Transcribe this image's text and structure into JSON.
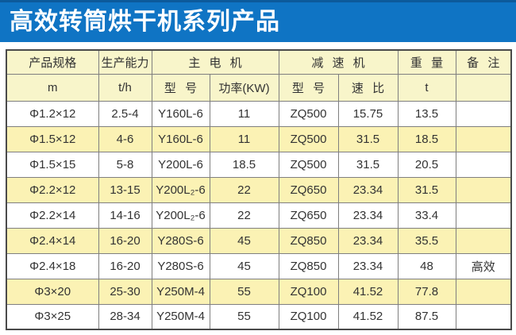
{
  "title": "高效转筒烘干机系列产品",
  "colors": {
    "title_bar": "#0F74C4",
    "title_bar_top_edge": "#0C5A9B",
    "header_bg": "#F8F5CA",
    "row_alt_bg": "#FBF2B4",
    "grid_line": "#7F7F7F",
    "outer_border": "#4A4A4A",
    "title_text": "#FFFFFF",
    "body_text": "#333333"
  },
  "table": {
    "header_row1": [
      "产品规格",
      "生产能力",
      "主 电 机",
      "减 速 机",
      "重 量",
      "备 注"
    ],
    "header_row2": [
      "m",
      "t/h",
      "型 号",
      "功率(KW)",
      "型 号",
      "速 比",
      "t",
      ""
    ],
    "rows": [
      [
        "Φ1.2×12",
        "2.5-4",
        "Y160L-6",
        "11",
        "ZQ500",
        "15.75",
        "13.5",
        ""
      ],
      [
        "Φ1.5×12",
        "4-6",
        "Y160L-6",
        "11",
        "ZQ500",
        "31.5",
        "18.5",
        ""
      ],
      [
        "Φ1.5×15",
        "5-8",
        "Y200L-6",
        "18.5",
        "ZQ500",
        "31.5",
        "20.5",
        ""
      ],
      [
        "Φ2.2×12",
        "13-15",
        "Y200L₂-6",
        "22",
        "ZQ650",
        "23.34",
        "31.5",
        ""
      ],
      [
        "Φ2.2×14",
        "14-16",
        "Y200L₂-6",
        "22",
        "ZQ650",
        "23.34",
        "33.4",
        ""
      ],
      [
        "Φ2.4×14",
        "16-20",
        "Y280S-6",
        "45",
        "ZQ850",
        "23.34",
        "35.5",
        ""
      ],
      [
        "Φ2.4×18",
        "16-20",
        "Y280S-6",
        "45",
        "ZQ850",
        "23.34",
        "48",
        "高效"
      ],
      [
        "Φ3×20",
        "25-30",
        "Y250M-4",
        "55",
        "ZQ100",
        "41.52",
        "77.8",
        ""
      ],
      [
        "Φ3×25",
        "28-34",
        "Y250M-4",
        "55",
        "ZQ100",
        "41.52",
        "87.5",
        ""
      ]
    ]
  }
}
